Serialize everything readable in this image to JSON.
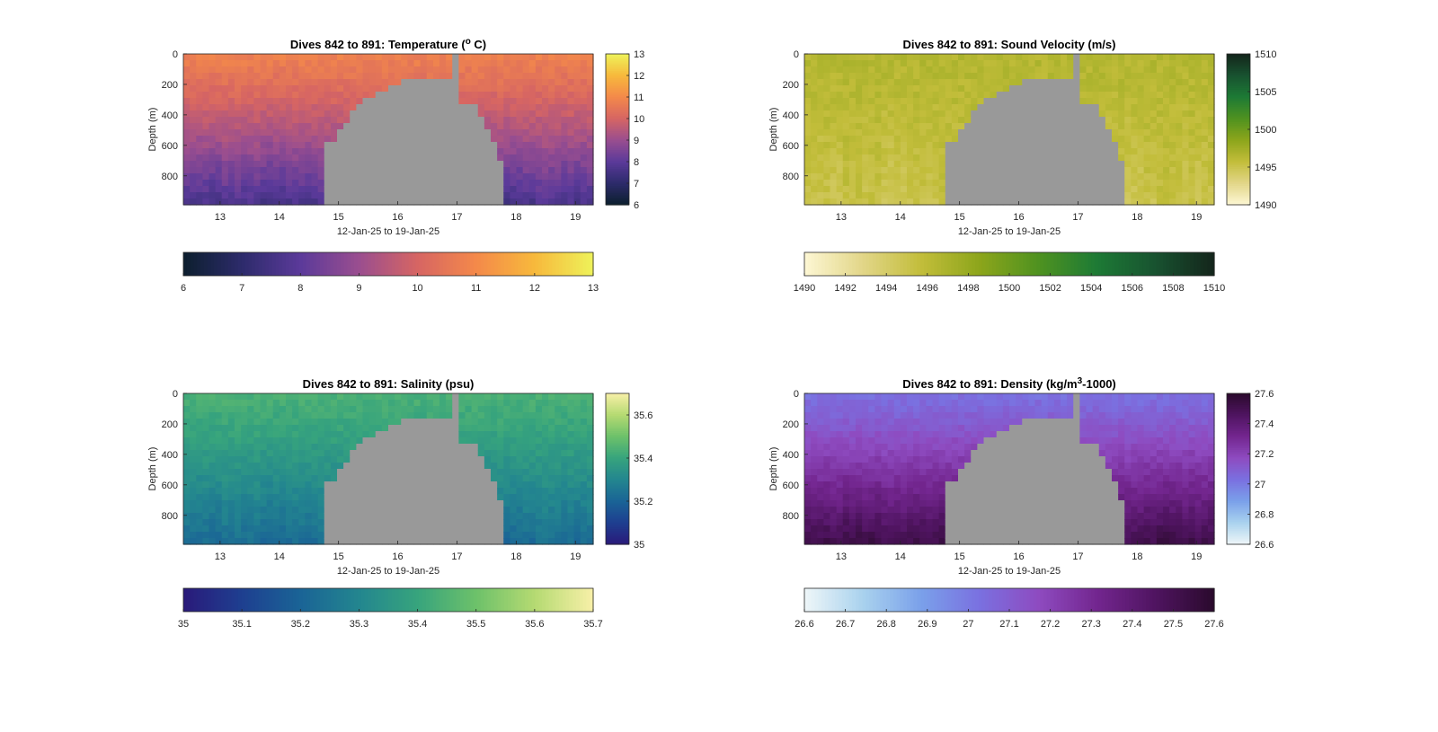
{
  "figure": {
    "background": "#ffffff",
    "fill_color": "#999999"
  },
  "chart_data": [
    {
      "type": "heatmap",
      "variable": "temperature",
      "title_text": "Dives 842 to 891: Temperature (",
      "title_sup": "o",
      "title_end": " C)",
      "xlabel": "12-Jan-25 to 19-Jan-25",
      "ylabel": "Depth (m)",
      "x_ticks": [
        "13",
        "14",
        "15",
        "16",
        "17",
        "18",
        "19"
      ],
      "y_ticks": [
        "0",
        "200",
        "400",
        "600",
        "800"
      ],
      "xlim": [
        12.38,
        19.3
      ],
      "ylim": [
        0,
        990
      ],
      "vertical_colorbar": {
        "ticks": [
          "6",
          "7",
          "8",
          "9",
          "10",
          "11",
          "12",
          "13"
        ],
        "range": [
          6,
          13
        ]
      },
      "horizontal_colorbar": {
        "ticks": [
          "6",
          "7",
          "8",
          "9",
          "10",
          "11",
          "12",
          "13"
        ],
        "range": [
          6,
          13
        ]
      },
      "colormap": [
        "#0c1f2e",
        "#2d2b6b",
        "#5b3a9a",
        "#9a4e8f",
        "#d66563",
        "#f4894a",
        "#f7b93c",
        "#eef25a"
      ],
      "surface_value": 10.8,
      "deep_value": 7.6
    },
    {
      "type": "heatmap",
      "variable": "sound_velocity",
      "title_text": "Dives 842 to 891: Sound Velocity (m/s)",
      "title_sup": "",
      "title_end": "",
      "xlabel": "12-Jan-25 to 19-Jan-25",
      "ylabel": "Depth (m)",
      "x_ticks": [
        "13",
        "14",
        "15",
        "16",
        "17",
        "18",
        "19"
      ],
      "y_ticks": [
        "0",
        "200",
        "400",
        "600",
        "800"
      ],
      "xlim": [
        12.38,
        19.3
      ],
      "ylim": [
        0,
        990
      ],
      "vertical_colorbar": {
        "ticks": [
          "1490",
          "1495",
          "1500",
          "1505",
          "1510"
        ],
        "range": [
          1490,
          1510
        ]
      },
      "horizontal_colorbar": {
        "ticks": [
          "1490",
          "1492",
          "1494",
          "1496",
          "1498",
          "1500",
          "1502",
          "1504",
          "1506",
          "1508",
          "1510"
        ],
        "range": [
          1490,
          1510
        ]
      },
      "colormap": [
        "#fdf7d4",
        "#e2d688",
        "#c2bd3a",
        "#8ca51b",
        "#4f9220",
        "#1d7a35",
        "#185230",
        "#14251b"
      ],
      "surface_value": 1496.5,
      "deep_value": 1495.0
    },
    {
      "type": "heatmap",
      "variable": "salinity",
      "title_text": "Dives 842 to 891: Salinity (psu)",
      "title_sup": "",
      "title_end": "",
      "xlabel": "12-Jan-25 to 19-Jan-25",
      "ylabel": "Depth (m)",
      "x_ticks": [
        "13",
        "14",
        "15",
        "16",
        "17",
        "18",
        "19"
      ],
      "y_ticks": [
        "0",
        "200",
        "400",
        "600",
        "800"
      ],
      "xlim": [
        12.38,
        19.3
      ],
      "ylim": [
        0,
        990
      ],
      "vertical_colorbar": {
        "ticks": [
          "35",
          "35.2",
          "35.4",
          "35.6"
        ],
        "range": [
          35,
          35.7
        ]
      },
      "horizontal_colorbar": {
        "ticks": [
          "35",
          "35.1",
          "35.2",
          "35.3",
          "35.4",
          "35.5",
          "35.6",
          "35.7"
        ],
        "range": [
          35,
          35.7
        ]
      },
      "colormap": [
        "#2a1a7a",
        "#1e3f90",
        "#1a6496",
        "#23868f",
        "#37a47d",
        "#6dc16a",
        "#b5da72",
        "#f8f0a8"
      ],
      "surface_value": 35.44,
      "deep_value": 35.22
    },
    {
      "type": "heatmap",
      "variable": "density",
      "title_text": "Dives 842 to 891: Density (kg/m",
      "title_sup": "3",
      "title_end": "-1000)",
      "xlabel": "12-Jan-25 to 19-Jan-25",
      "ylabel": "Depth (m)",
      "x_ticks": [
        "13",
        "14",
        "15",
        "16",
        "17",
        "18",
        "19"
      ],
      "y_ticks": [
        "0",
        "200",
        "400",
        "600",
        "800"
      ],
      "xlim": [
        12.38,
        19.3
      ],
      "ylim": [
        0,
        990
      ],
      "vertical_colorbar": {
        "ticks": [
          "26.6",
          "26.8",
          "27",
          "27.2",
          "27.4",
          "27.6"
        ],
        "range": [
          26.6,
          27.6
        ]
      },
      "horizontal_colorbar": {
        "ticks": [
          "26.6",
          "26.7",
          "26.8",
          "26.9",
          "27",
          "27.1",
          "27.2",
          "27.3",
          "27.4",
          "27.5",
          "27.6"
        ],
        "range": [
          26.6,
          27.6
        ]
      },
      "colormap": [
        "#eef6f8",
        "#a9d2ee",
        "#7aa0ea",
        "#7a70e0",
        "#8e4bc0",
        "#73268f",
        "#4f1460",
        "#2a0a2c"
      ],
      "surface_value": 27.03,
      "deep_value": 27.52
    }
  ]
}
